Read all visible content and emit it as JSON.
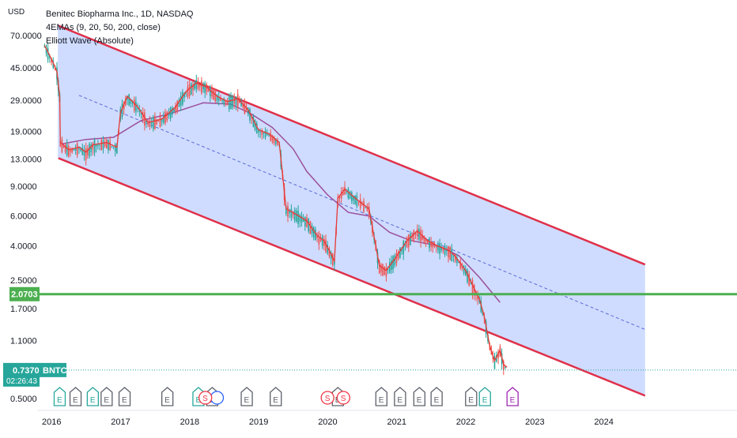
{
  "chart_data": {
    "type": "candlestick",
    "title": "Benitec Biopharma Inc., 1D, NASDAQ",
    "ticker": "BNTC",
    "indicators": [
      "4EMAs (9, 20, 50, 200, close)",
      "Elliott Wave (Absolute)"
    ],
    "currency_label": "USD",
    "y_scale": "log",
    "y_ticks": [
      "70.0000",
      "45.0000",
      "29.0000",
      "19.0000",
      "13.0000",
      "9.0000",
      "6.0000",
      "4.0000",
      "2.5000",
      "1.7000",
      "1.1000",
      "0.5000"
    ],
    "x_ticks": [
      "2016",
      "2017",
      "2018",
      "2019",
      "2020",
      "2021",
      "2022",
      "2023",
      "2024"
    ],
    "horizontal_line": {
      "label": "2.0703",
      "value": 2.0703,
      "color": "#4caf50"
    },
    "last_price": {
      "label": "0.7370",
      "countdown": "02:26:43",
      "value": 0.737,
      "color": "#26a69a"
    },
    "channel": {
      "color": "#e0304a",
      "fill": "#c7d6ff",
      "upper_start": {
        "date": "2016.1",
        "value": 80
      },
      "upper_end": {
        "date": "2024.6",
        "value": 3.1
      },
      "lower_start": {
        "date": "2016.1",
        "value": 13.2
      },
      "lower_end": {
        "date": "2024.6",
        "value": 0.52
      },
      "mid_start": {
        "date": "2016.4",
        "value": 31
      },
      "mid_end": {
        "date": "2024.6",
        "value": 1.28
      }
    },
    "price_path": [
      [
        "2015.9",
        60
      ],
      [
        "2016.0",
        50
      ],
      [
        "2016.08",
        42
      ],
      [
        "2016.12",
        30
      ],
      [
        "2016.13",
        16
      ],
      [
        "2016.25",
        14.5
      ],
      [
        "2016.4",
        15
      ],
      [
        "2016.5",
        14
      ],
      [
        "2016.6",
        15.5
      ],
      [
        "2016.8",
        16
      ],
      [
        "2016.95",
        15
      ],
      [
        "2017.0",
        24
      ],
      [
        "2017.1",
        30
      ],
      [
        "2017.25",
        26
      ],
      [
        "2017.4",
        21
      ],
      [
        "2017.6",
        22
      ],
      [
        "2017.8",
        26
      ],
      [
        "2017.95",
        32
      ],
      [
        "2018.1",
        36
      ],
      [
        "2018.25",
        34
      ],
      [
        "2018.4",
        30
      ],
      [
        "2018.55",
        28
      ],
      [
        "2018.7",
        29
      ],
      [
        "2018.85",
        25
      ],
      [
        "2019.0",
        19
      ],
      [
        "2019.15",
        18
      ],
      [
        "2019.3",
        16
      ],
      [
        "2019.4",
        6.5
      ],
      [
        "2019.55",
        6
      ],
      [
        "2019.7",
        5.5
      ],
      [
        "2019.85",
        4.5
      ],
      [
        "2019.95",
        4.2
      ],
      [
        "2020.1",
        3.2
      ],
      [
        "2020.15",
        7.5
      ],
      [
        "2020.25",
        8.5
      ],
      [
        "2020.4",
        7.5
      ],
      [
        "2020.6",
        6.5
      ],
      [
        "2020.75",
        3.0
      ],
      [
        "2020.85",
        2.8
      ],
      [
        "2021.0",
        3.4
      ],
      [
        "2021.15",
        4.2
      ],
      [
        "2021.3",
        4.8
      ],
      [
        "2021.45",
        4.2
      ],
      [
        "2021.6",
        3.9
      ],
      [
        "2021.75",
        3.7
      ],
      [
        "2021.85",
        3.4
      ],
      [
        "2022.0",
        2.8
      ],
      [
        "2022.1",
        2.3
      ],
      [
        "2022.2",
        1.9
      ],
      [
        "2022.27",
        1.5
      ],
      [
        "2022.35",
        1.0
      ],
      [
        "2022.42",
        0.82
      ],
      [
        "2022.5",
        0.95
      ],
      [
        "2022.55",
        0.78
      ],
      [
        "2022.6",
        0.75
      ]
    ],
    "ema_long_path": [
      [
        "2016.15",
        16
      ],
      [
        "2016.5",
        17
      ],
      [
        "2016.9",
        17.5
      ],
      [
        "2017.3",
        22
      ],
      [
        "2017.7",
        24
      ],
      [
        "2018.2",
        28
      ],
      [
        "2018.6",
        27.5
      ],
      [
        "2018.9",
        24
      ],
      [
        "2019.2",
        20
      ],
      [
        "2019.5",
        15
      ],
      [
        "2019.7",
        11
      ],
      [
        "2020.0",
        8
      ],
      [
        "2020.3",
        6.3
      ],
      [
        "2020.6",
        6
      ],
      [
        "2020.9",
        4.8
      ],
      [
        "2021.2",
        4.3
      ],
      [
        "2021.6",
        4.0
      ],
      [
        "2021.9",
        3.5
      ],
      [
        "2022.2",
        2.6
      ],
      [
        "2022.5",
        1.85
      ]
    ],
    "earnings_markers": [
      {
        "date": "2016.12",
        "label": "E",
        "color": "#26a69a"
      },
      {
        "date": "2016.35",
        "label": "E",
        "color": "#5d606b"
      },
      {
        "date": "2016.6",
        "label": "E",
        "color": "#26a69a"
      },
      {
        "date": "2016.8",
        "label": "E",
        "color": "#5d606b"
      },
      {
        "date": "2017.06",
        "label": "E",
        "color": "#5d606b"
      },
      {
        "date": "2017.68",
        "label": "E",
        "color": "#5d606b"
      },
      {
        "date": "2018.13",
        "label": "E",
        "color": "#26a69a"
      },
      {
        "date": "2018.33",
        "label": "E",
        "color": "#5d606b"
      },
      {
        "date": "2018.83",
        "label": "E",
        "color": "#5d606b"
      },
      {
        "date": "2019.25",
        "label": "E",
        "color": "#5d606b"
      },
      {
        "date": "2020.15",
        "label": "E",
        "color": "#5d606b"
      },
      {
        "date": "2020.78",
        "label": "E",
        "color": "#5d606b"
      },
      {
        "date": "2021.05",
        "label": "E",
        "color": "#5d606b"
      },
      {
        "date": "2021.33",
        "label": "E",
        "color": "#5d606b"
      },
      {
        "date": "2021.58",
        "label": "E",
        "color": "#5d606b"
      },
      {
        "date": "2022.08",
        "label": "E",
        "color": "#5d606b"
      },
      {
        "date": "2022.28",
        "label": "E",
        "color": "#26a69a"
      },
      {
        "date": "2022.68",
        "label": "E",
        "color": "#9c27b0"
      }
    ],
    "split_markers": [
      {
        "date": "2018.23",
        "label": "S",
        "color": "#f23645"
      },
      {
        "date": "2020.0",
        "label": "S",
        "color": "#f23645"
      },
      {
        "date": "2020.23",
        "label": "S",
        "color": "#f23645"
      }
    ],
    "dividend_markers": [
      {
        "date": "2018.4",
        "color": "#2962ff"
      }
    ]
  }
}
